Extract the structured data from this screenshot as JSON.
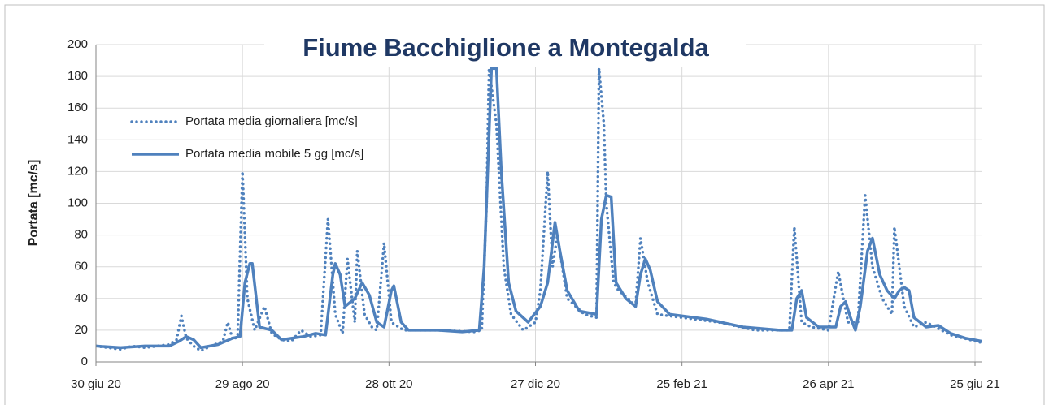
{
  "chart_data": {
    "type": "line",
    "title": "Fiume Bacchiglione a Montegalda",
    "y_label": "Portata [mc/s]",
    "xlim": [
      0,
      363
    ],
    "ylim": [
      0,
      200
    ],
    "xticks": [
      {
        "value": 0,
        "label": "30 giu 20"
      },
      {
        "value": 60,
        "label": "29 ago 20"
      },
      {
        "value": 120,
        "label": "28 ott 20"
      },
      {
        "value": 180,
        "label": "27 dic 20"
      },
      {
        "value": 240,
        "label": "25 feb 21"
      },
      {
        "value": 300,
        "label": "26 apr 21"
      },
      {
        "value": 360,
        "label": "25 giu 21"
      }
    ],
    "yticks": [
      0,
      20,
      40,
      60,
      80,
      100,
      120,
      140,
      160,
      180,
      200
    ],
    "grid": true,
    "legend": "upper left",
    "series": [
      {
        "name": "Portata media giornaliera [mc/s]",
        "color": "#4f81bd",
        "style": "dotted",
        "x": [
          0,
          5,
          10,
          15,
          20,
          25,
          30,
          33,
          35,
          37,
          40,
          43,
          47,
          52,
          54,
          56,
          58,
          60,
          62,
          65,
          69,
          72,
          76,
          80,
          84,
          88,
          92,
          95,
          98,
          101,
          103,
          106,
          107,
          110,
          113,
          115,
          118,
          121,
          126,
          140,
          155,
          158,
          160,
          161,
          164,
          167,
          170,
          175,
          180,
          182,
          185,
          187,
          189,
          193,
          200,
          205,
          206,
          208,
          209,
          212,
          214,
          218,
          221,
          223,
          226,
          230,
          240,
          255,
          270,
          284,
          286,
          289,
          293,
          300,
          304,
          308,
          312,
          315,
          318,
          322,
          326,
          327,
          331,
          335,
          340,
          350,
          363
        ],
        "values": [
          10,
          9,
          8,
          10,
          9,
          10,
          11,
          14,
          29,
          15,
          10,
          7,
          10,
          13,
          25,
          14,
          16,
          120,
          40,
          20,
          35,
          18,
          14,
          13,
          20,
          16,
          17,
          90,
          30,
          18,
          65,
          25,
          70,
          30,
          22,
          20,
          75,
          25,
          20,
          20,
          19,
          20,
          100,
          185,
          150,
          60,
          30,
          20,
          25,
          45,
          120,
          60,
          80,
          40,
          30,
          28,
          185,
          150,
          100,
          50,
          45,
          40,
          35,
          78,
          50,
          30,
          28,
          25,
          20,
          20,
          85,
          25,
          22,
          20,
          57,
          25,
          25,
          105,
          60,
          40,
          30,
          85,
          35,
          22,
          25,
          17,
          12
        ]
      },
      {
        "name": "Portata media mobile 5 gg [mc/s]",
        "color": "#4f81bd",
        "style": "solid",
        "x": [
          0,
          10,
          20,
          30,
          34,
          37,
          40,
          43,
          50,
          56,
          59,
          61,
          63,
          64,
          67,
          72,
          76,
          85,
          90,
          94,
          97,
          98,
          100,
          102,
          106,
          109,
          112,
          115,
          118,
          121,
          122,
          125,
          128,
          140,
          150,
          157,
          159,
          162,
          164,
          166,
          169,
          172,
          177,
          182,
          185,
          188,
          190,
          193,
          198,
          205,
          207,
          209,
          211,
          213,
          217,
          221,
          223,
          225,
          227,
          230,
          235,
          250,
          265,
          280,
          285,
          287,
          289,
          291,
          296,
          303,
          305,
          307,
          309,
          311,
          313,
          316,
          318,
          321,
          324,
          327,
          329,
          331,
          333,
          335,
          340,
          345,
          350,
          356,
          363
        ],
        "values": [
          10,
          9,
          10,
          10,
          13,
          16,
          14,
          9,
          11,
          15,
          16,
          50,
          62,
          62,
          22,
          20,
          14,
          16,
          18,
          17,
          55,
          62,
          55,
          35,
          40,
          50,
          42,
          25,
          22,
          45,
          48,
          25,
          20,
          20,
          19,
          20,
          60,
          185,
          185,
          120,
          50,
          32,
          25,
          35,
          50,
          88,
          70,
          45,
          32,
          30,
          90,
          105,
          104,
          50,
          40,
          35,
          55,
          65,
          58,
          38,
          30,
          27,
          22,
          20,
          20,
          40,
          45,
          28,
          22,
          22,
          35,
          38,
          28,
          20,
          35,
          70,
          78,
          55,
          45,
          40,
          45,
          47,
          45,
          28,
          22,
          23,
          18,
          15,
          13
        ]
      }
    ]
  }
}
